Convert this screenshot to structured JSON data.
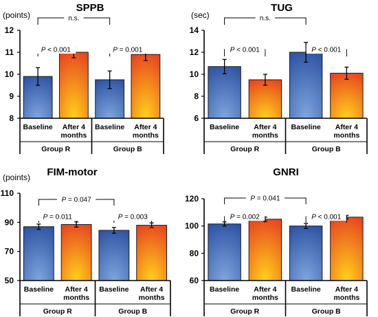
{
  "colors": {
    "baseline_dark": "#2f55a4",
    "baseline_light": "#7ea6dd",
    "after_dark": "#e8471f",
    "after_light": "#ffd31a"
  },
  "chart_data": [
    {
      "type": "bar",
      "title": "SPPB",
      "ylabel": "(points)",
      "ylim": [
        8,
        12
      ],
      "yticks": [
        8,
        9,
        10,
        11,
        12
      ],
      "categories": [
        "Baseline",
        "After 4 months",
        "Baseline",
        "After 4 months"
      ],
      "groups": [
        {
          "name": "Group R",
          "categories": [
            0,
            1
          ]
        },
        {
          "name": "Group B",
          "categories": [
            2,
            3
          ]
        }
      ],
      "values": [
        9.9,
        11.0,
        9.75,
        10.9
      ],
      "errors": [
        0.4,
        0.25,
        0.4,
        0.28
      ],
      "comparisons": [
        {
          "from": 0,
          "to": 1,
          "label": "P < 0.001"
        },
        {
          "from": 2,
          "to": 3,
          "label": "P = 0.001"
        },
        {
          "from": 0,
          "to": 2,
          "label": "n.s."
        }
      ]
    },
    {
      "type": "bar",
      "title": "TUG",
      "ylabel": "(sec)",
      "ylim": [
        6,
        14
      ],
      "yticks": [
        6,
        8,
        10,
        12,
        14
      ],
      "categories": [
        "Baseline",
        "After 4 months",
        "Baseline",
        "After 4 months"
      ],
      "groups": [
        {
          "name": "Group R",
          "categories": [
            0,
            1
          ]
        },
        {
          "name": "Group B",
          "categories": [
            2,
            3
          ]
        }
      ],
      "values": [
        10.7,
        9.5,
        12.0,
        10.1
      ],
      "errors": [
        0.65,
        0.5,
        0.9,
        0.55
      ],
      "comparisons": [
        {
          "from": 0,
          "to": 1,
          "label": "P < 0.001"
        },
        {
          "from": 2,
          "to": 3,
          "label": "P < 0.001"
        },
        {
          "from": 0,
          "to": 2,
          "label": "n.s."
        }
      ]
    },
    {
      "type": "bar",
      "title": "FIM-motor",
      "ylabel": "(points)",
      "ylim": [
        50,
        110
      ],
      "yticks": [
        50,
        70,
        90,
        110
      ],
      "categories": [
        "Baseline",
        "After 4 months",
        "Baseline",
        "After 4 months"
      ],
      "groups": [
        {
          "name": "Group R",
          "categories": [
            0,
            1
          ]
        },
        {
          "name": "Group B",
          "categories": [
            2,
            3
          ]
        }
      ],
      "values": [
        87,
        88.5,
        84.5,
        88
      ],
      "errors": [
        1.8,
        1.8,
        2.0,
        1.6
      ],
      "comparisons": [
        {
          "from": 0,
          "to": 1,
          "label": "P = 0.011"
        },
        {
          "from": 2,
          "to": 3,
          "label": "P = 0.003"
        },
        {
          "from": 0,
          "to": 2,
          "label": "P = 0.047"
        }
      ]
    },
    {
      "type": "bar",
      "title": "GNRI",
      "ylabel": "",
      "ylim": [
        60,
        120
      ],
      "yticks": [
        60,
        80,
        100,
        120
      ],
      "categories": [
        "Baseline",
        "After 4 months",
        "Baseline",
        "After 4 months"
      ],
      "groups": [
        {
          "name": "Group R",
          "categories": [
            0,
            1
          ]
        },
        {
          "name": "Group B",
          "categories": [
            2,
            3
          ]
        }
      ],
      "values": [
        101.5,
        105,
        100,
        106.5
      ],
      "errors": [
        1.5,
        1.5,
        1.8,
        1.3
      ],
      "comparisons": [
        {
          "from": 0,
          "to": 1,
          "label": "P = 0.002"
        },
        {
          "from": 2,
          "to": 3,
          "label": "P < 0.001"
        },
        {
          "from": 0,
          "to": 2,
          "label": "P = 0.041"
        }
      ]
    }
  ]
}
